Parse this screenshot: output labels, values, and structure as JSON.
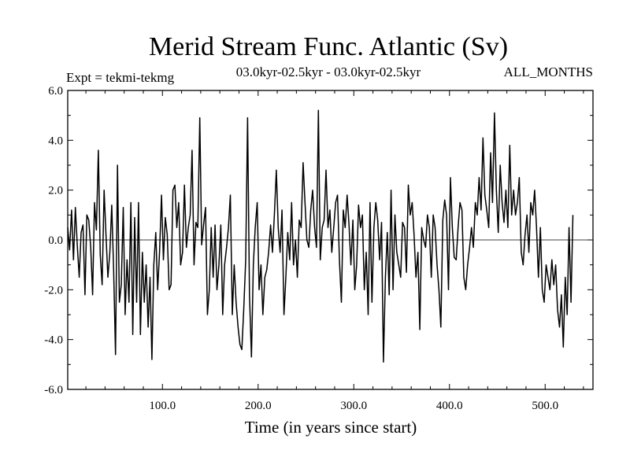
{
  "chart_data": {
    "type": "line",
    "title": "Merid Stream Func. Atlantic (Sv)",
    "subtitle_left": "Expt = tekmi-tekmg",
    "subtitle_center": "03.0kyr-02.5kyr - 03.0kyr-02.5kyr",
    "subtitle_right": "ALL_MONTHS",
    "xlabel": "Time (in years since start)",
    "ylabel": "",
    "xlim": [
      1,
      550
    ],
    "ylim": [
      -6,
      6
    ],
    "x_ticks": [
      100,
      200,
      300,
      400,
      500
    ],
    "x_tick_labels": [
      "100.0",
      "200.0",
      "300.0",
      "400.0",
      "500.0"
    ],
    "y_ticks": [
      -6,
      -4,
      -2,
      0,
      2,
      4,
      6
    ],
    "y_tick_labels": [
      "-6.0",
      "-4.0",
      "-2.0",
      "0.0",
      "2.0",
      "4.0",
      "6.0"
    ],
    "zero_line": 0,
    "series": [
      {
        "name": "Merid Stream Func. Atlantic",
        "x_start": 1,
        "x_step": 2,
        "values": [
          0.5,
          -0.4,
          1.2,
          -0.8,
          1.3,
          -0.2,
          -1.5,
          0.3,
          0.6,
          -2.2,
          1.0,
          0.8,
          -0.3,
          -2.2,
          1.5,
          0.4,
          3.6,
          -0.6,
          -1.8,
          2.0,
          0.2,
          -1.5,
          -0.5,
          1.4,
          -1.2,
          -4.6,
          3.0,
          -2.5,
          -1.8,
          1.3,
          -3.0,
          -0.8,
          -2.5,
          1.5,
          -3.8,
          0.9,
          -2.5,
          1.5,
          -3.8,
          -0.5,
          -2.5,
          -1.0,
          -3.5,
          -1.5,
          -4.8,
          -1.0,
          0.3,
          -2.0,
          -0.5,
          1.8,
          -0.8,
          0.9,
          0.2,
          -2.0,
          -1.8,
          2.0,
          2.2,
          0.5,
          1.5,
          -1.0,
          -0.5,
          2.2,
          -0.3,
          0.5,
          1.0,
          3.6,
          -1.0,
          0.7,
          0.5,
          4.9,
          -0.2,
          0.6,
          1.3,
          -3.0,
          -2.0,
          0.5,
          -1.5,
          0.6,
          -2.0,
          -1.0,
          0.6,
          -3.0,
          -1.0,
          -0.3,
          0.5,
          1.8,
          -3.0,
          -1.0,
          -2.5,
          -3.5,
          -4.2,
          -4.4,
          -2.8,
          -0.8,
          4.9,
          -2.2,
          -4.7,
          -1.0,
          0.5,
          1.5,
          -2.0,
          -1.0,
          -3.0,
          -1.5,
          -1.2,
          -0.5,
          0.6,
          -0.5,
          1.0,
          2.8,
          0.5,
          -0.5,
          1.2,
          -3.0,
          -1.5,
          0.3,
          -0.8,
          1.5,
          -1.0,
          0.0,
          -1.5,
          0.8,
          0.5,
          3.1,
          1.5,
          0.0,
          -0.3,
          1.2,
          2.0,
          0.5,
          -0.3,
          5.2,
          -0.8,
          0.5,
          0.8,
          2.8,
          0.5,
          1.2,
          -0.5,
          0.5,
          1.5,
          1.8,
          -0.8,
          -2.5,
          1.2,
          0.5,
          1.8,
          0.6,
          -1.0,
          0.8,
          -2.0,
          -1.0,
          1.4,
          0.5,
          1.0,
          -2.0,
          -0.5,
          -3.0,
          1.5,
          -2.5,
          0.5,
          1.5,
          0.8,
          -0.8,
          0.7,
          -4.9,
          -1.5,
          0.3,
          -2.2,
          2.0,
          -2.0,
          1.0,
          -0.5,
          -1.0,
          -1.5,
          0.7,
          0.5,
          -1.3,
          2.2,
          1.0,
          1.5,
          0.2,
          -1.5,
          -0.5,
          -3.6,
          0.5,
          0.0,
          -0.3,
          1.0,
          0.5,
          -1.5,
          1.0,
          0.5,
          -1.0,
          -2.0,
          -3.5,
          0.8,
          1.6,
          1.0,
          -2.0,
          2.5,
          0.5,
          -0.7,
          -0.8,
          0.5,
          1.5,
          1.2,
          -1.5,
          -2.0,
          -1.0,
          -0.3,
          0.5,
          -0.3,
          1.5,
          1.0,
          2.5,
          1.2,
          4.1,
          1.8,
          1.2,
          0.5,
          3.5,
          1.5,
          5.1,
          2.0,
          0.3,
          3.0,
          1.5,
          0.7,
          2.0,
          0.5,
          3.8,
          1.0,
          2.0,
          1.0,
          1.5,
          2.5,
          -0.5,
          -1.0,
          0.2,
          1.0,
          -0.5,
          1.5,
          1.0,
          2.0,
          0.5,
          -1.5,
          0.5,
          -2.0,
          -2.5,
          -1.0,
          -1.5,
          -2.0,
          -0.8,
          -1.8,
          -1.0,
          -2.8,
          -3.5,
          -2.2,
          -4.3,
          -1.5,
          -3.0,
          0.5,
          -2.5,
          1.0
        ]
      }
    ]
  }
}
